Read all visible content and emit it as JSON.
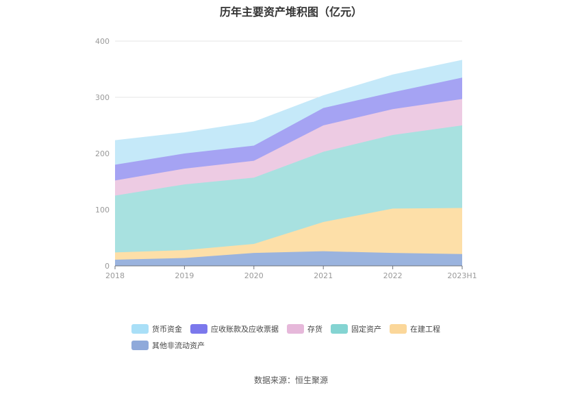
{
  "chart_data": {
    "type": "area",
    "stacked": true,
    "title": "历年主要资产堆积图（亿元）",
    "categories": [
      "2018",
      "2019",
      "2020",
      "2021",
      "2022",
      "2023H1"
    ],
    "ylim": [
      0,
      400
    ],
    "yticks": [
      0,
      100,
      200,
      300,
      400
    ],
    "grid": true,
    "legend_position": "bottom",
    "series": [
      {
        "name": "其他非流动资产",
        "color": "#9AB3DE",
        "values": [
          11,
          14,
          23,
          26,
          23,
          21
        ]
      },
      {
        "name": "在建工程",
        "color": "#FDDFA8",
        "values": [
          13,
          14,
          16,
          52,
          79,
          82
        ]
      },
      {
        "name": "固定资产",
        "color": "#A8E1E0",
        "values": [
          101,
          117,
          118,
          125,
          131,
          147
        ]
      },
      {
        "name": "存货",
        "color": "#EDCBE3",
        "values": [
          27,
          28,
          30,
          47,
          46,
          47
        ]
      },
      {
        "name": "应收账款及应收票据",
        "color": "#A5A3F3",
        "values": [
          28,
          27,
          27,
          31,
          30,
          38
        ]
      },
      {
        "name": "货币资金",
        "color": "#C5E9F9",
        "values": [
          43,
          37,
          42,
          22,
          31,
          31
        ]
      }
    ],
    "legend_order": [
      "货币资金",
      "应收账款及应收票据",
      "存货",
      "固定资产",
      "在建工程",
      "其他非流动资产"
    ],
    "legend_colors": {
      "货币资金": "#A9DFF7",
      "应收账款及应收票据": "#7B78EC",
      "存货": "#E6B8DA",
      "固定资产": "#84D4D2",
      "在建工程": "#FBD79A",
      "其他非流动资产": "#8FA9DA"
    }
  },
  "source_note": "数据来源：恒生聚源"
}
